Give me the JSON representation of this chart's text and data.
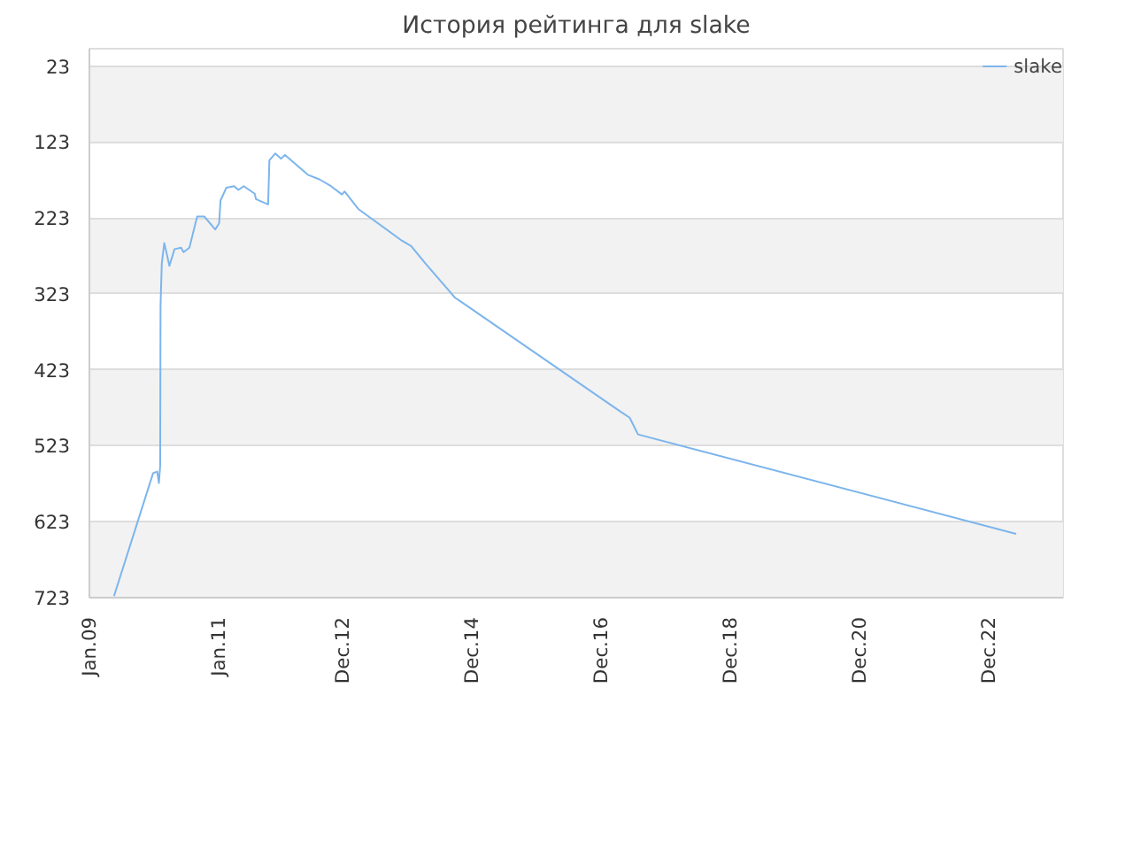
{
  "chart_data": {
    "type": "line",
    "title": "История рейтинга для slake",
    "x": [
      "2009-05-20",
      "2009-12-27",
      "2010-01-19",
      "2010-01-29",
      "2010-02-05",
      "2010-02-07",
      "2010-02-14",
      "2010-02-28",
      "2010-03-15",
      "2010-03-29",
      "2010-04-27",
      "2010-06-03",
      "2010-06-17",
      "2010-07-20",
      "2010-09-02",
      "2010-10-12",
      "2010-12-13",
      "2011-01-04",
      "2011-01-12",
      "2011-02-14",
      "2011-03-30",
      "2011-04-23",
      "2011-05-23",
      "2011-07-24",
      "2011-07-31",
      "2011-10-08",
      "2011-10-15",
      "2011-11-17",
      "2011-12-20",
      "2012-01-11",
      "2012-05-19",
      "2012-07-23",
      "2012-09-27",
      "2012-11-28",
      "2012-12-13",
      "2013-02-28",
      "2013-11-03",
      "2013-12-24",
      "2014-03-15",
      "2014-08-29",
      "2014-10-01",
      "2017-03-21",
      "2017-05-12",
      "2017-06-28",
      "2023-05-05"
    ],
    "series": [
      {
        "name": "slake",
        "color": "#7cb5ec",
        "values": [
          721,
          559,
          557,
          572,
          549,
          339,
          283,
          256,
          271,
          286,
          264,
          262,
          268,
          262,
          221,
          221,
          238,
          230,
          200,
          183,
          181,
          186,
          181,
          191,
          198,
          205,
          147,
          138,
          145,
          140,
          166,
          172,
          181,
          192,
          188,
          211,
          253,
          260,
          283,
          328,
          333,
          478,
          486,
          508,
          639
        ]
      }
    ],
    "xlim": [
      "2009-01-01",
      "2024-01-25"
    ],
    "xticks": [
      {
        "value": "2009-01-01",
        "label": "Jan.09"
      },
      {
        "value": "2011-01-01",
        "label": "Jan.11"
      },
      {
        "value": "2012-12-01",
        "label": "Dec.12"
      },
      {
        "value": "2014-12-01",
        "label": "Dec.14"
      },
      {
        "value": "2016-12-01",
        "label": "Dec.16"
      },
      {
        "value": "2018-12-01",
        "label": "Dec.18"
      },
      {
        "value": "2020-12-01",
        "label": "Dec.20"
      },
      {
        "value": "2022-12-01",
        "label": "Dec.22"
      }
    ],
    "ylim": [
      723,
      0
    ],
    "yticks": [
      23,
      123,
      223,
      323,
      423,
      523,
      623,
      723
    ],
    "grid": "y",
    "legend": "top right",
    "marker": "none",
    "line_style": "solid"
  }
}
